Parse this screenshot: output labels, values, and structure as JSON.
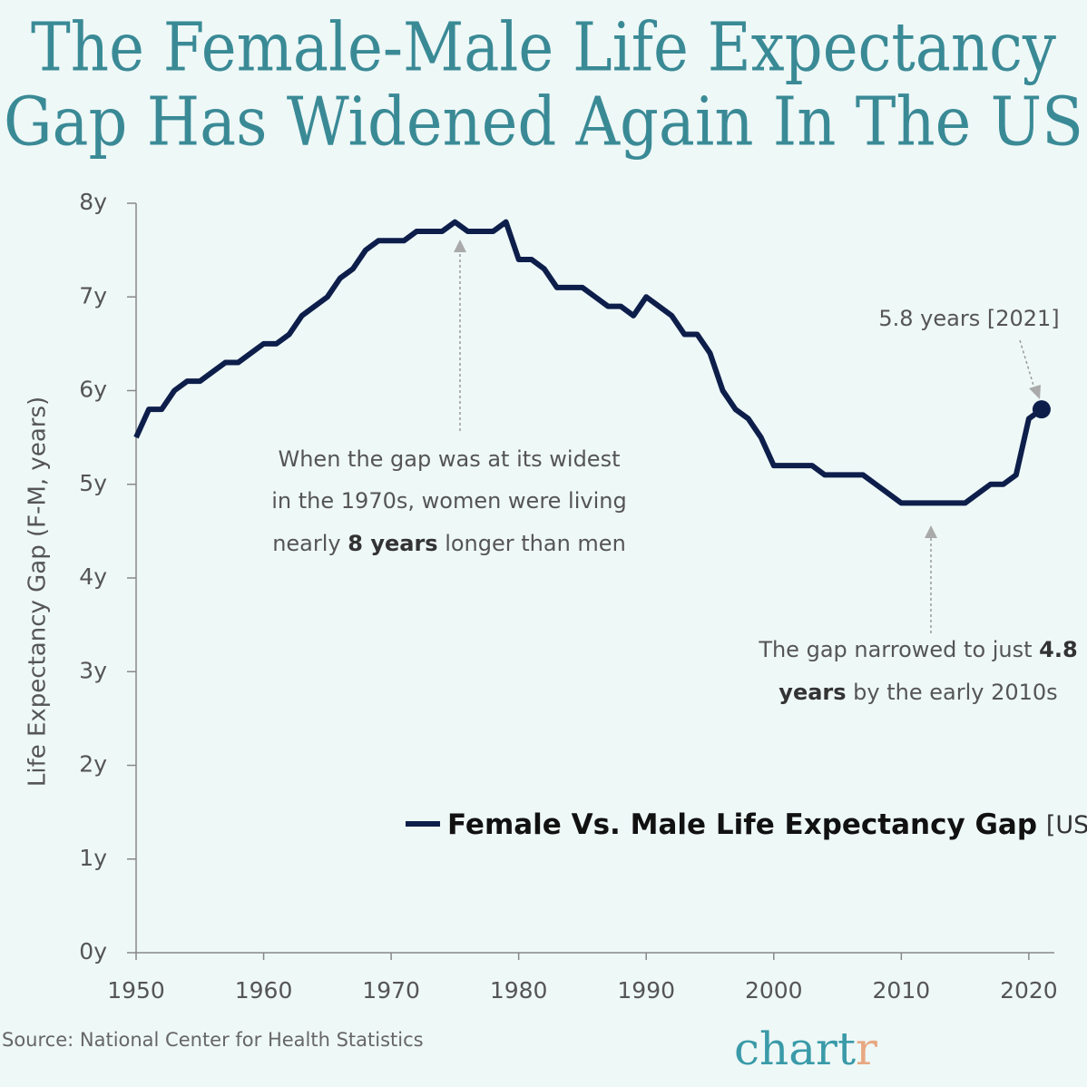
{
  "chart_data": {
    "type": "line",
    "title": [
      "The Female-Male Life Expectancy",
      "Gap Has Widened Again In The US"
    ],
    "y_label": "Life Expectancy Gap (F-M, years)",
    "x": [
      1950,
      1951,
      1952,
      1953,
      1954,
      1955,
      1956,
      1957,
      1958,
      1959,
      1960,
      1961,
      1962,
      1963,
      1964,
      1965,
      1966,
      1967,
      1968,
      1969,
      1970,
      1971,
      1972,
      1973,
      1974,
      1975,
      1976,
      1977,
      1978,
      1979,
      1980,
      1981,
      1982,
      1983,
      1984,
      1985,
      1986,
      1987,
      1988,
      1989,
      1990,
      1991,
      1992,
      1993,
      1994,
      1995,
      1996,
      1997,
      1998,
      1999,
      2000,
      2001,
      2002,
      2003,
      2004,
      2005,
      2006,
      2007,
      2008,
      2009,
      2010,
      2011,
      2012,
      2013,
      2014,
      2015,
      2016,
      2017,
      2018,
      2019,
      2020,
      2021
    ],
    "series": [
      {
        "name": "Female Vs. Male Life Expectancy Gap",
        "legend_suffix": "[US]",
        "color": "#0d1e4b",
        "values": [
          5.5,
          5.8,
          5.8,
          6.0,
          6.1,
          6.1,
          6.2,
          6.3,
          6.3,
          6.4,
          6.5,
          6.5,
          6.6,
          6.8,
          6.9,
          7.0,
          7.2,
          7.3,
          7.5,
          7.6,
          7.6,
          7.6,
          7.7,
          7.7,
          7.7,
          7.8,
          7.7,
          7.7,
          7.7,
          7.8,
          7.4,
          7.4,
          7.3,
          7.1,
          7.1,
          7.1,
          7.0,
          6.9,
          6.9,
          6.8,
          7.0,
          6.9,
          6.8,
          6.6,
          6.6,
          6.4,
          6.0,
          5.8,
          5.7,
          5.5,
          5.2,
          5.2,
          5.2,
          5.2,
          5.1,
          5.1,
          5.1,
          5.1,
          5.0,
          4.9,
          4.8,
          4.8,
          4.8,
          4.8,
          4.8,
          4.8,
          4.9,
          5.0,
          5.0,
          5.1,
          5.7,
          5.8
        ]
      }
    ],
    "xlim": [
      1950,
      2022
    ],
    "xticks": [
      1950,
      1960,
      1970,
      1980,
      1990,
      2000,
      2010,
      2020
    ],
    "ylim": [
      0,
      8
    ],
    "yticks": [
      {
        "value": 0,
        "label": "0y"
      },
      {
        "value": 1,
        "label": "1y"
      },
      {
        "value": 2,
        "label": "2y"
      },
      {
        "value": 3,
        "label": "3y"
      },
      {
        "value": 4,
        "label": "4y"
      },
      {
        "value": 5,
        "label": "5y"
      },
      {
        "value": 6,
        "label": "6y"
      },
      {
        "value": 7,
        "label": "7y"
      },
      {
        "value": 8,
        "label": "8y"
      }
    ],
    "annotations": [
      {
        "lines": [
          [
            {
              "text": "When the gap was at its widest"
            }
          ],
          [
            {
              "text": "in the 1970s, women were living"
            }
          ],
          [
            {
              "text": "nearly "
            },
            {
              "text": "8 years",
              "bold": true
            },
            {
              "text": " longer than men"
            }
          ]
        ]
      },
      {
        "lines": [
          [
            {
              "text": "The gap narrowed to just "
            },
            {
              "text": "4.8",
              "bold": true
            }
          ],
          [
            {
              "text": "years",
              "bold": true
            },
            {
              "text": " by the early 2010s"
            }
          ]
        ]
      },
      {
        "lines": [
          [
            {
              "text": "5.8 years [2021]"
            }
          ]
        ]
      }
    ],
    "source": "Source: National Center for Health Statistics",
    "logo": [
      "chart",
      "r"
    ]
  }
}
